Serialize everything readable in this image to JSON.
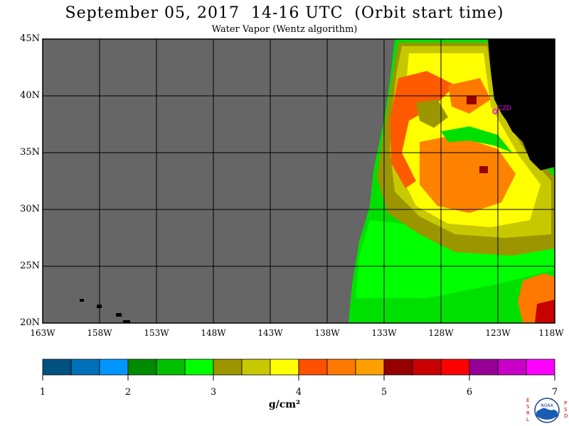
{
  "header": {
    "title": "September 05, 2017  14-16 UTC  (Orbit start time)",
    "subtitle": "Water Vapor (Wentz algorithm)"
  },
  "map": {
    "lat_labels": [
      "45N",
      "40N",
      "35N",
      "30N",
      "25N",
      "20N"
    ],
    "lon_labels": [
      "163W",
      "158W",
      "153W",
      "148W",
      "143W",
      "138W",
      "133W",
      "128W",
      "123W",
      "118W"
    ],
    "station_label": "CZD",
    "colors": {
      "no_data": "#666666",
      "land": "#000000",
      "station": "#ff00ff"
    }
  },
  "colorbar": {
    "ticks": [
      "1",
      "2",
      "3",
      "4",
      "5",
      "6",
      "7"
    ],
    "unit": "g/cm²",
    "colors": [
      "#005080",
      "#0070b8",
      "#0096ff",
      "#008c00",
      "#00c000",
      "#00ff00",
      "#9b9600",
      "#c8c800",
      "#ffff00",
      "#ff5000",
      "#ff7800",
      "#ffa000",
      "#960000",
      "#c80000",
      "#ff0000",
      "#960096",
      "#c800c8",
      "#ff00ff"
    ]
  },
  "logo": {
    "left_letters": [
      "E",
      "S",
      "R",
      "L"
    ],
    "right_letters": [
      "P",
      "S",
      "D"
    ],
    "name": "NOAA"
  }
}
